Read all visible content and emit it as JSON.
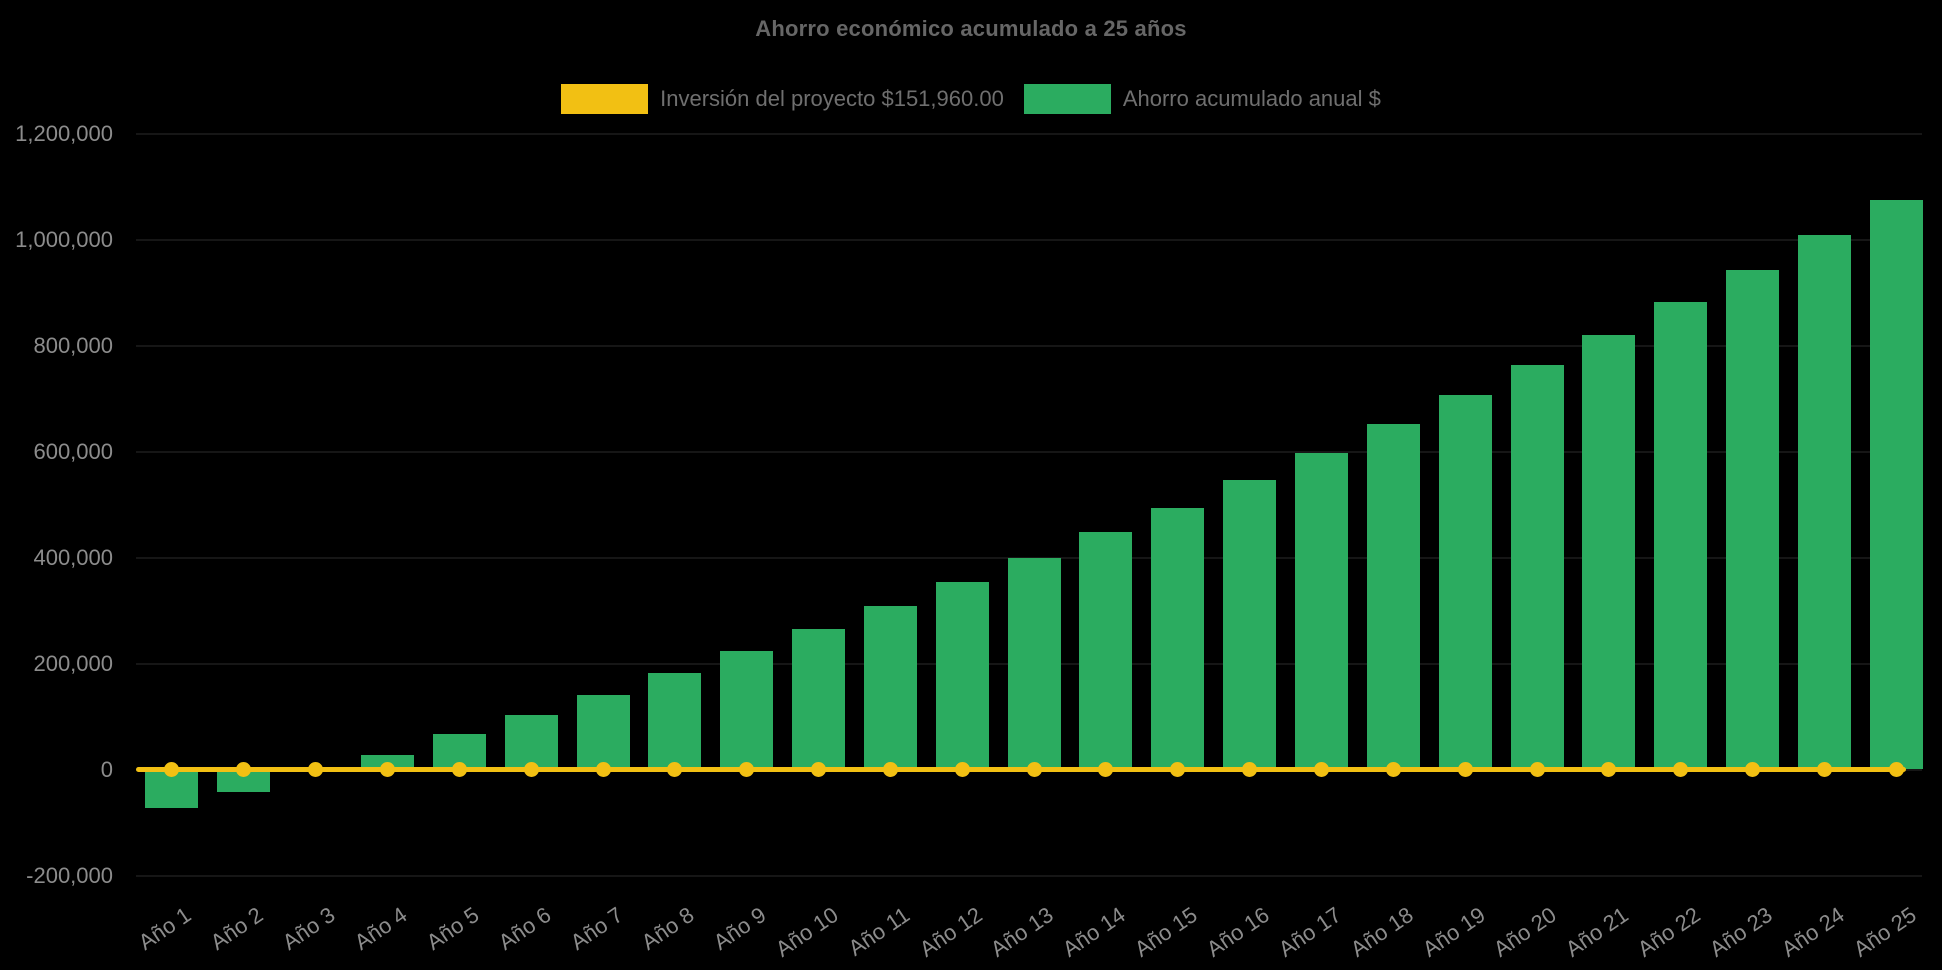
{
  "chart": {
    "title": "Ahorro económico acumulado a 25 años",
    "legend": [
      {
        "label": "Inversión del proyecto $151,960.00",
        "color": "#f2c013",
        "marker": "line"
      },
      {
        "label": "Ahorro acumulado anual $",
        "color": "#2bac60",
        "marker": "bar"
      }
    ],
    "colors": {
      "background": "#000000",
      "investment_yellow": "#f2c013",
      "savings_green": "#2bac60",
      "title_text": "#666666",
      "legend_text": "#6f6f6f",
      "axis_text": "#8c8c8c"
    }
  },
  "chart_data": {
    "type": "bar",
    "title": "Ahorro económico acumulado a 25 años",
    "xlabel": "",
    "ylabel": "",
    "categories": [
      "Año 1",
      "Año 2",
      "Año 3",
      "Año 4",
      "Año 5",
      "Año 6",
      "Año 7",
      "Año 8",
      "Año 9",
      "Año 10",
      "Año 11",
      "Año 12",
      "Año 13",
      "Año 14",
      "Año 15",
      "Año 16",
      "Año 17",
      "Año 18",
      "Año 19",
      "Año 20",
      "Año 21",
      "Año 22",
      "Año 23",
      "Año 24",
      "Año 25"
    ],
    "series": [
      {
        "name": "Inversión del proyecto $151,960.00",
        "type": "line",
        "color": "#f2c013",
        "values": [
          0,
          0,
          0,
          0,
          0,
          0,
          0,
          0,
          0,
          0,
          0,
          0,
          0,
          0,
          0,
          0,
          0,
          0,
          0,
          0,
          0,
          0,
          0,
          0,
          0
        ]
      },
      {
        "name": "Ahorro acumulado anual $",
        "type": "bar",
        "color": "#2bac60",
        "values": [
          -73000,
          -42000,
          0,
          27500,
          67000,
          103000,
          141000,
          181500,
          223500,
          265000,
          308000,
          354000,
          399000,
          447500,
          493000,
          546000,
          598000,
          651500,
          706500,
          763000,
          820500,
          881500,
          943000,
          1008000,
          1074500
        ]
      }
    ],
    "ylim": [
      -200000,
      1200000
    ],
    "ytick_values": [
      1200000,
      1000000,
      800000,
      600000,
      400000,
      200000,
      0,
      -200000
    ],
    "ytick_step": 200000,
    "grid": "faint",
    "legend_position": "top",
    "x_tick_rotation_deg": -34
  }
}
